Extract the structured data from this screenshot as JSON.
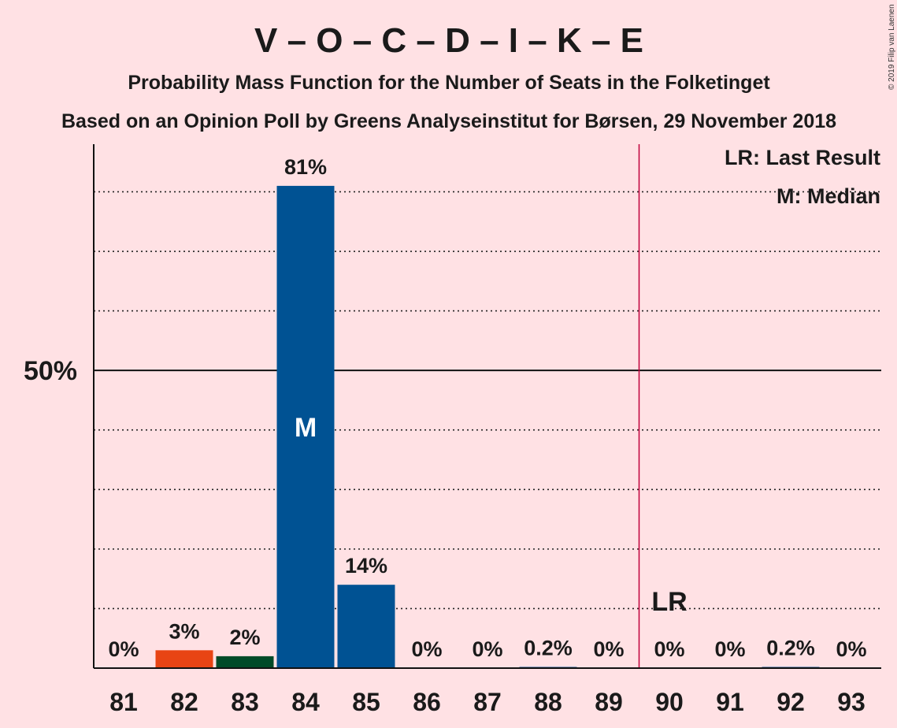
{
  "title": "V – O – C – D – I – K – E",
  "subtitle1": "Probability Mass Function for the Number of Seats in the Folketinget",
  "subtitle2": "Based on an Opinion Poll by Greens Analyseinstitut for Børsen, 29 November 2018",
  "copyright": "© 2019 Filip van Laenen",
  "legend": {
    "last_result": "LR: Last Result",
    "median": "M: Median"
  },
  "chart_data": {
    "type": "bar",
    "categories": [
      "81",
      "82",
      "83",
      "84",
      "85",
      "86",
      "87",
      "88",
      "89",
      "90",
      "91",
      "92",
      "93"
    ],
    "values": [
      0,
      3,
      2,
      81,
      14,
      0,
      0,
      0.2,
      0,
      0,
      0,
      0.2,
      0
    ],
    "value_labels": [
      "0%",
      "3%",
      "2%",
      "81%",
      "14%",
      "0%",
      "0%",
      "0.2%",
      "0%",
      "0%",
      "0%",
      "0.2%",
      "0%"
    ],
    "bar_colors": [
      "#005293",
      "#e84414",
      "#004a28",
      "#005293",
      "#005293",
      "#005293",
      "#005293",
      "#005293",
      "#005293",
      "#005293",
      "#005293",
      "#005293",
      "#005293"
    ],
    "ylim": [
      0,
      88
    ],
    "yticks_labeled": [
      {
        "value": 50,
        "label": "50%"
      }
    ],
    "dotted_gridlines": [
      10,
      20,
      30,
      40,
      60,
      70,
      80
    ],
    "median": {
      "category": "84",
      "label": "M"
    },
    "last_result": {
      "category": "90",
      "label": "LR"
    },
    "grid": true,
    "legend_position": "top-right",
    "line_color": "#c0003a"
  }
}
